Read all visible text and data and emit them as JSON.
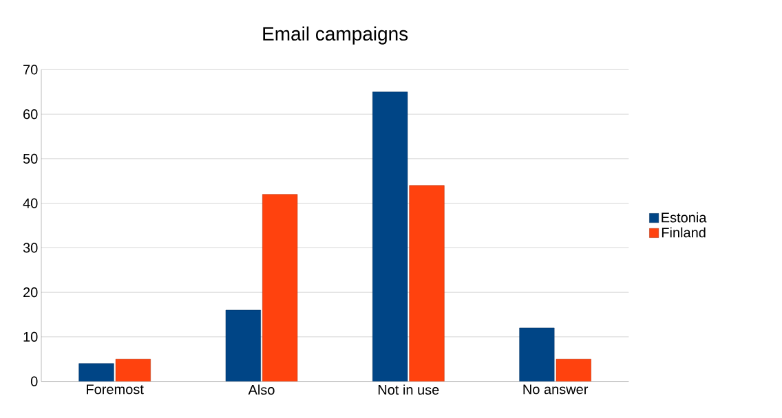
{
  "chart_data": {
    "type": "bar",
    "title": "Email campaigns",
    "categories": [
      "Foremost",
      "Also",
      "Not in use",
      "No answer"
    ],
    "series": [
      {
        "name": "Estonia",
        "color": "#004586",
        "values": [
          4,
          16,
          65,
          12
        ]
      },
      {
        "name": "Finland",
        "color": "#ff420e",
        "values": [
          5,
          42,
          44,
          5
        ]
      }
    ],
    "ylim": [
      0,
      70
    ],
    "yticks": [
      0,
      10,
      20,
      30,
      40,
      50,
      60,
      70
    ],
    "grid": "y",
    "legend": "right"
  }
}
